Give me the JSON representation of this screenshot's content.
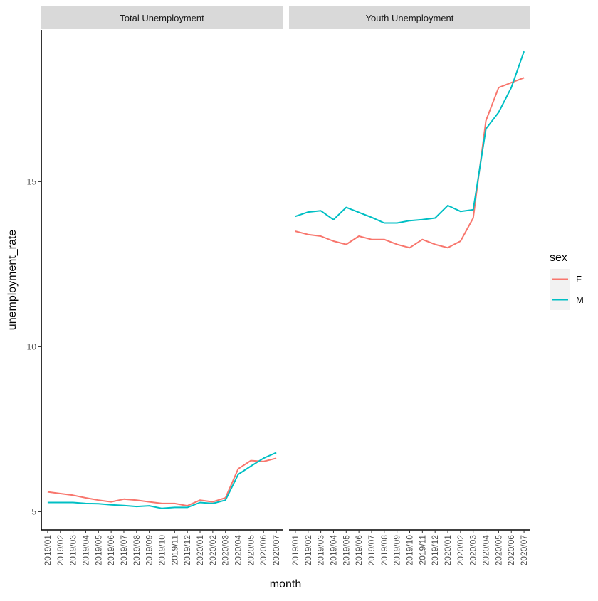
{
  "chart_data": {
    "type": "line",
    "xlabel": "month",
    "ylabel": "unemployment_rate",
    "ylim": [
      4.45,
      19.6
    ],
    "yticks": [
      5,
      10,
      15
    ],
    "grid": false,
    "legend_position": "right",
    "legend_title": "sex",
    "x": [
      "2019/01",
      "2019/02",
      "2019/03",
      "2019/04",
      "2019/05",
      "2019/06",
      "2019/07",
      "2019/08",
      "2019/09",
      "2019/10",
      "2019/11",
      "2019/12",
      "2020/01",
      "2020/02",
      "2020/03",
      "2020/04",
      "2020/05",
      "2020/06",
      "2020/07"
    ],
    "colors": {
      "F": "#F8766D",
      "M": "#00BFC4"
    },
    "panels": [
      {
        "title": "Total Unemployment",
        "series": [
          {
            "name": "F",
            "values": [
              5.6,
              5.55,
              5.5,
              5.42,
              5.35,
              5.3,
              5.38,
              5.35,
              5.3,
              5.25,
              5.25,
              5.18,
              5.35,
              5.3,
              5.42,
              6.3,
              6.55,
              6.52,
              6.62
            ]
          },
          {
            "name": "M",
            "values": [
              5.28,
              5.28,
              5.28,
              5.25,
              5.24,
              5.21,
              5.19,
              5.16,
              5.18,
              5.1,
              5.13,
              5.13,
              5.28,
              5.25,
              5.35,
              6.13,
              6.38,
              6.62,
              6.79
            ]
          }
        ]
      },
      {
        "title": "Youth Unemployment",
        "series": [
          {
            "name": "F",
            "values": [
              13.5,
              13.4,
              13.35,
              13.2,
              13.1,
              13.35,
              13.25,
              13.25,
              13.1,
              13.0,
              13.25,
              13.1,
              13.0,
              13.2,
              13.9,
              16.85,
              17.85,
              18.0,
              18.15
            ]
          },
          {
            "name": "M",
            "values": [
              13.95,
              14.08,
              14.12,
              13.85,
              14.22,
              14.07,
              13.92,
              13.75,
              13.75,
              13.82,
              13.85,
              13.9,
              14.28,
              14.1,
              14.15,
              16.6,
              17.1,
              17.85,
              18.95
            ]
          }
        ]
      }
    ]
  }
}
